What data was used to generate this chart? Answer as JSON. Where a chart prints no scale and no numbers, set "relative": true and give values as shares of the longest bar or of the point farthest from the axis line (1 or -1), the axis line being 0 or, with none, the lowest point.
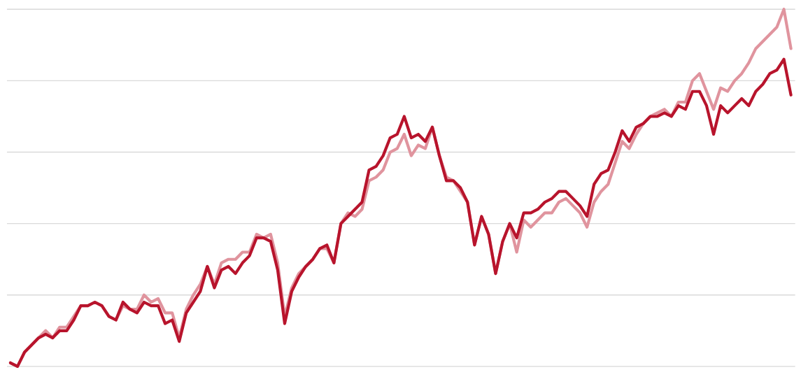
{
  "chart_data": {
    "type": "line",
    "relative": true,
    "grid": "y",
    "legend": false,
    "categories": [
      null,
      null,
      null,
      null,
      null,
      null,
      null,
      null,
      null,
      null,
      null,
      null,
      null,
      null,
      null,
      null,
      null,
      null,
      null,
      null,
      null,
      null,
      null,
      null,
      null,
      null,
      null,
      null,
      null,
      null,
      null,
      null,
      null,
      null,
      null,
      null,
      null,
      null,
      null,
      null,
      null,
      null,
      null,
      null,
      null,
      null,
      null,
      null,
      null,
      null,
      null,
      null,
      null,
      null,
      null,
      null,
      null,
      null,
      null,
      null,
      null,
      null,
      null,
      null,
      null,
      null,
      null,
      null,
      null,
      null,
      null,
      null,
      null,
      null,
      null,
      null,
      null,
      null,
      null,
      null,
      null,
      null,
      null,
      null,
      null,
      null,
      null,
      null,
      null,
      null,
      null,
      null,
      null,
      null,
      null,
      null,
      null,
      null,
      null,
      null,
      null,
      null,
      null,
      null,
      null,
      null,
      null,
      null,
      null,
      null,
      null,
      null
    ],
    "series": [
      {
        "color": "#b8142c",
        "values": [
          0.01,
          0,
          0.04,
          0.06,
          0.08,
          0.09,
          0.08,
          0.1,
          0.1,
          0.13,
          0.17,
          0.17,
          0.18,
          0.17,
          0.14,
          0.13,
          0.18,
          0.16,
          0.15,
          0.18,
          0.17,
          0.17,
          0.12,
          0.13,
          0.07,
          0.15,
          0.18,
          0.21,
          0.28,
          0.22,
          0.27,
          0.28,
          0.26,
          0.29,
          0.31,
          0.36,
          0.36,
          0.35,
          0.27,
          0.12,
          0.21,
          0.25,
          0.28,
          0.3,
          0.33,
          0.34,
          0.29,
          0.4,
          0.42,
          0.44,
          0.46,
          0.55,
          0.56,
          0.59,
          0.64,
          0.65,
          0.7,
          0.64,
          0.65,
          0.63,
          0.67,
          0.59,
          0.52,
          0.52,
          0.5,
          0.46,
          0.34,
          0.42,
          0.37,
          0.26,
          0.35,
          0.4,
          0.36,
          0.43,
          0.43,
          0.44,
          0.46,
          0.47,
          0.49,
          0.49,
          0.47,
          0.45,
          0.42,
          0.51,
          0.54,
          0.55,
          0.6,
          0.66,
          0.63,
          0.67,
          0.68,
          0.7,
          0.7,
          0.71,
          0.7,
          0.73,
          0.72,
          0.77,
          0.77,
          0.73,
          0.65,
          0.73,
          0.71,
          0.73,
          0.75,
          0.73,
          0.77,
          0.79,
          0.82,
          0.83,
          0.86,
          0.76
        ]
      },
      {
        "color": "#e0949e",
        "values": [
          0.01,
          0.0,
          0.04,
          0.06,
          0.08,
          0.1,
          0.08,
          0.11,
          0.11,
          0.14,
          0.17,
          0.17,
          0.18,
          0.17,
          0.14,
          0.13,
          0.17,
          0.16,
          0.16,
          0.2,
          0.18,
          0.19,
          0.15,
          0.15,
          0.08,
          0.16,
          0.2,
          0.23,
          0.28,
          0.23,
          0.29,
          0.3,
          0.3,
          0.32,
          0.32,
          0.37,
          0.36,
          0.37,
          0.29,
          0.14,
          0.22,
          0.26,
          0.28,
          0.3,
          0.33,
          0.33,
          0.29,
          0.4,
          0.43,
          0.42,
          0.44,
          0.52,
          0.53,
          0.55,
          0.6,
          0.61,
          0.65,
          0.59,
          0.62,
          0.61,
          0.67,
          0.59,
          0.53,
          0.52,
          0.49,
          0.46,
          0.34,
          0.42,
          0.37,
          0.26,
          0.35,
          0.4,
          0.32,
          0.41,
          0.39,
          0.41,
          0.43,
          0.43,
          0.46,
          0.47,
          0.45,
          0.43,
          0.39,
          0.46,
          0.49,
          0.51,
          0.57,
          0.63,
          0.61,
          0.65,
          0.68,
          0.7,
          0.71,
          0.72,
          0.7,
          0.74,
          0.74,
          0.8,
          0.82,
          0.77,
          0.72,
          0.78,
          0.77,
          0.8,
          0.82,
          0.85,
          0.89,
          0.91,
          0.93,
          0.95,
          1.0,
          0.89
        ]
      }
    ]
  }
}
